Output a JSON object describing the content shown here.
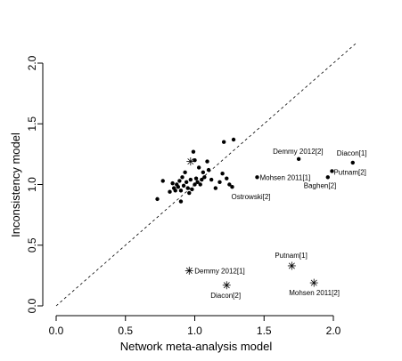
{
  "chart_data": {
    "type": "scatter",
    "title": "",
    "xlabel": "Network meta-analysis model",
    "ylabel": "Inconsistency model",
    "xlim": [
      0,
      2.15
    ],
    "ylim": [
      0,
      2.15
    ],
    "xticks": [
      "0.0",
      "0.5",
      "1.0",
      "1.5",
      "2.0"
    ],
    "yticks": [
      "0.0",
      "0.5",
      "1.0",
      "1.5",
      "2.0"
    ],
    "reference_line": "y = x (dashed)",
    "grid": false,
    "series": [
      {
        "marker": "dot",
        "points": [
          {
            "x": 0.73,
            "y": 0.88
          },
          {
            "x": 0.77,
            "y": 1.03
          },
          {
            "x": 0.82,
            "y": 0.94
          },
          {
            "x": 0.84,
            "y": 1.01
          },
          {
            "x": 0.85,
            "y": 0.97
          },
          {
            "x": 0.86,
            "y": 0.95
          },
          {
            "x": 0.87,
            "y": 1.0
          },
          {
            "x": 0.88,
            "y": 0.98
          },
          {
            "x": 0.89,
            "y": 1.03
          },
          {
            "x": 0.9,
            "y": 0.86
          },
          {
            "x": 0.9,
            "y": 0.95
          },
          {
            "x": 0.91,
            "y": 1.06
          },
          {
            "x": 0.92,
            "y": 0.99
          },
          {
            "x": 0.93,
            "y": 1.1
          },
          {
            "x": 0.94,
            "y": 1.02
          },
          {
            "x": 0.95,
            "y": 0.97
          },
          {
            "x": 0.96,
            "y": 0.93
          },
          {
            "x": 0.97,
            "y": 1.04
          },
          {
            "x": 0.98,
            "y": 0.96
          },
          {
            "x": 0.99,
            "y": 1.27
          },
          {
            "x": 1.0,
            "y": 1.0
          },
          {
            "x": 1.0,
            "y": 1.2
          },
          {
            "x": 1.01,
            "y": 1.05
          },
          {
            "x": 1.02,
            "y": 1.02
          },
          {
            "x": 1.03,
            "y": 1.14
          },
          {
            "x": 1.04,
            "y": 1.0
          },
          {
            "x": 1.05,
            "y": 1.04
          },
          {
            "x": 1.06,
            "y": 1.1
          },
          {
            "x": 1.07,
            "y": 1.06
          },
          {
            "x": 1.09,
            "y": 1.19
          },
          {
            "x": 1.1,
            "y": 1.12
          },
          {
            "x": 1.12,
            "y": 1.04
          },
          {
            "x": 1.15,
            "y": 0.97
          },
          {
            "x": 1.18,
            "y": 1.02
          },
          {
            "x": 1.2,
            "y": 1.09
          },
          {
            "x": 1.21,
            "y": 1.35
          },
          {
            "x": 1.23,
            "y": 1.05
          },
          {
            "x": 1.25,
            "y": 1.0
          },
          {
            "x": 1.28,
            "y": 1.37
          },
          {
            "x": 1.45,
            "y": 1.06,
            "label": "Mohsen 2011[1]"
          },
          {
            "x": 1.27,
            "y": 0.98,
            "label": "Ostrowski[2]"
          },
          {
            "x": 1.75,
            "y": 1.21,
            "label": "Demmy 2012[2]"
          },
          {
            "x": 1.96,
            "y": 1.06,
            "label": "Baghen[2]"
          },
          {
            "x": 1.99,
            "y": 1.11,
            "label": "Putnam[2]"
          },
          {
            "x": 2.14,
            "y": 1.18,
            "label": "Diacon[1]"
          }
        ]
      },
      {
        "marker": "star",
        "points": [
          {
            "x": 0.97,
            "y": 1.19
          },
          {
            "x": 0.96,
            "y": 0.29,
            "label": "Demmy 2012[1]"
          },
          {
            "x": 1.23,
            "y": 0.17,
            "label": "Diacon[2]"
          },
          {
            "x": 1.7,
            "y": 0.33,
            "label": "Putnam[1]"
          },
          {
            "x": 1.86,
            "y": 0.19,
            "label": "Mohsen 2011[2]"
          }
        ]
      }
    ]
  }
}
